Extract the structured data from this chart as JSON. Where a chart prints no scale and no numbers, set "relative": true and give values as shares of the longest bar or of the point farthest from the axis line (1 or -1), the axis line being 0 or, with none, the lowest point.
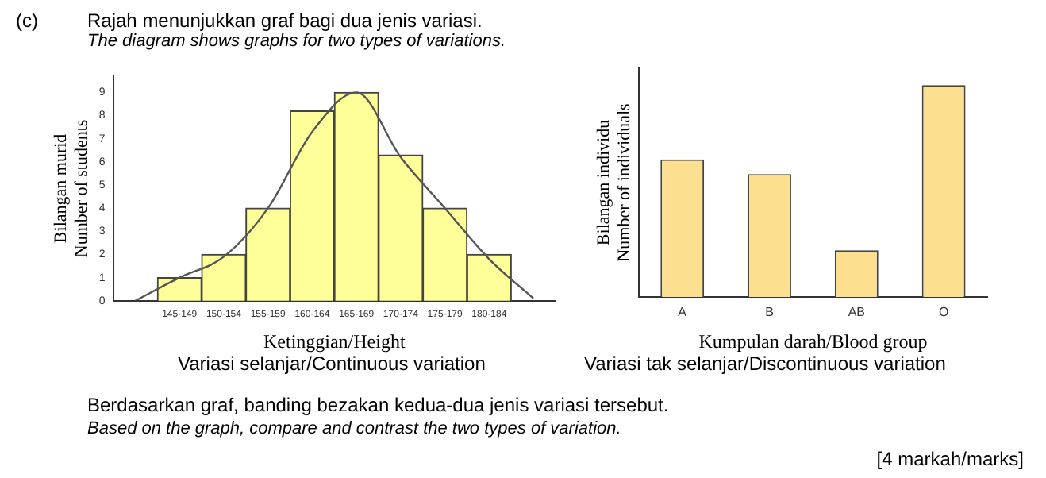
{
  "chart_data": [
    {
      "type": "bar",
      "title": "Rajah menunjukkan graf bagi dua jenis variasi.",
      "subtitle": "The diagram shows graphs for two types of variations.",
      "xlabel": "Ketinggian/Height",
      "ylabel": "Bilangan murid\nNumber of students",
      "categories": [
        null,
        "145-149",
        "150-154",
        "155-159",
        "160-164",
        "165-169",
        "170-174",
        "175-179",
        "180-184",
        null
      ],
      "series": [
        {
          "type": "bar",
          "color": "#ffff99",
          "values": [
            null,
            1,
            2,
            4,
            8.2,
            9,
            6.3,
            4,
            2,
            null
          ]
        },
        {
          "type": "line",
          "color": "#555555",
          "values": [
            0,
            1,
            1.9,
            4,
            7.3,
            9,
            6.2,
            4,
            1.8,
            0.1
          ]
        }
      ],
      "ylim": [
        0,
        9.7
      ],
      "yticks": [
        0,
        1,
        2,
        3,
        4,
        5,
        6,
        7,
        8,
        9
      ],
      "grid": false,
      "legend": false,
      "marker": "none",
      "annotations": [
        "(c)",
        "Variasi selanjar/Continuous variation",
        "Berdasarkan graf, banding bezakan kedua-dua jenis variasi tersebut.",
        "Based on the graph, compare and contrast the two types of variation.",
        "[4 markah/marks]"
      ]
    },
    {
      "type": "bar",
      "xlabel": "Kumpulan darah/Blood group",
      "ylabel": "Bilangan individu\nNumber of individuals",
      "categories": [
        "A",
        "B",
        "AB",
        "O"
      ],
      "values": [
        0.65,
        0.58,
        0.22,
        1
      ],
      "color": "#fde08f",
      "relative": true,
      "grid": false,
      "legend": false,
      "tick_labels": "x",
      "annotations": [
        "Variasi tak selanjar/Discontinuous variation"
      ]
    }
  ]
}
